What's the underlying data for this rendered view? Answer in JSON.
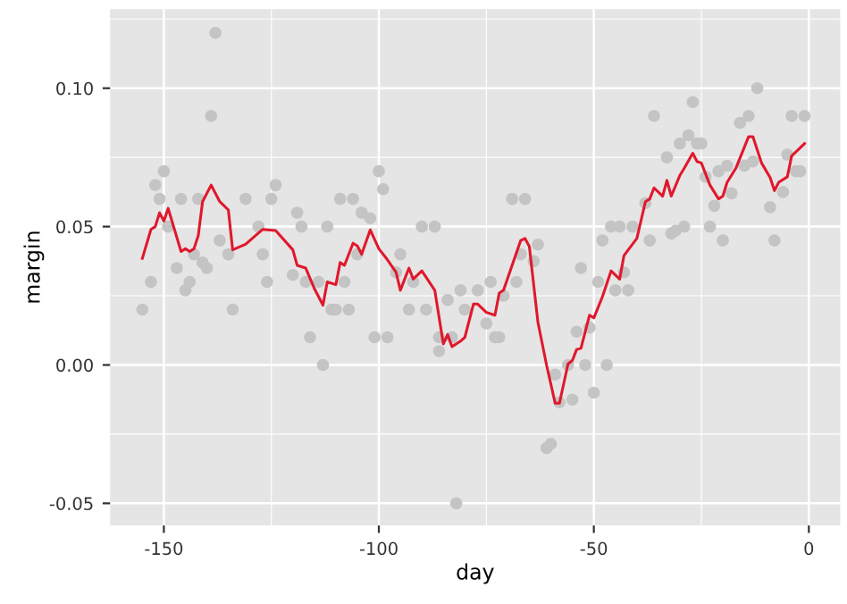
{
  "chart_data": {
    "type": "scatter",
    "xlabel": "day",
    "ylabel": "margin",
    "xlim": [
      -162.5,
      7.3
    ],
    "ylim": [
      -0.058,
      0.1286
    ],
    "xticks": [
      -150,
      -100,
      -50,
      0
    ],
    "yticks": [
      {
        "value": -0.05,
        "label": "-0.05"
      },
      {
        "value": 0.0,
        "label": "0.00"
      },
      {
        "value": 0.05,
        "label": "0.05"
      },
      {
        "value": 0.1,
        "label": "0.10"
      }
    ],
    "grid": true,
    "legend": false,
    "series": [
      {
        "marker": "circle",
        "color": "#c4c4c4",
        "x": [
          -155,
          -153,
          -152,
          -151,
          -150,
          -149,
          -147,
          -146,
          -145,
          -144,
          -143,
          -142,
          -141,
          -140,
          -139,
          -138,
          -137,
          -135,
          -134,
          -131,
          -128,
          -127,
          -126,
          -125,
          -124,
          -120,
          -119,
          -118,
          -117,
          -116,
          -114,
          -113,
          -112,
          -111,
          -110,
          -109,
          -108,
          -107,
          -106,
          -105,
          -104,
          -102,
          -101,
          -100,
          -99,
          -98,
          -96,
          -95,
          -93,
          -92,
          -90,
          -89,
          -87,
          -86,
          -86,
          -84,
          -83,
          -82,
          -81,
          -80,
          -77,
          -75,
          -74,
          -73,
          -72,
          -71,
          -69,
          -68,
          -67,
          -66,
          -64,
          -63,
          -61,
          -60,
          -59,
          -58,
          -56,
          -55,
          -54,
          -53,
          -52,
          -51,
          -50,
          -49,
          -48,
          -47,
          -46,
          -45,
          -44,
          -43,
          -42,
          -41,
          -38,
          -37,
          -36,
          -33,
          -32,
          -31,
          -30,
          -29,
          -28,
          -27,
          -26,
          -25,
          -24,
          -23,
          -22,
          -21,
          -20,
          -19,
          -18,
          -16,
          -15,
          -14,
          -13,
          -12,
          -9,
          -8,
          -6,
          -5,
          -4,
          -3,
          -2,
          -1
        ],
        "values": [
          0.02,
          0.03,
          0.065,
          0.06,
          0.07,
          0.05,
          0.035,
          0.06,
          0.027,
          0.03,
          0.04,
          0.06,
          0.037,
          0.035,
          0.09,
          0.12,
          0.045,
          0.04,
          0.02,
          0.06,
          0.05,
          0.04,
          0.03,
          0.06,
          0.065,
          0.0325,
          0.055,
          0.05,
          0.03,
          0.01,
          0.03,
          0.0,
          0.05,
          0.02,
          0.02,
          0.06,
          0.03,
          0.02,
          0.06,
          0.04,
          0.055,
          0.053,
          0.01,
          0.07,
          0.0635,
          0.01,
          0.0335,
          0.04,
          0.02,
          0.03,
          0.05,
          0.02,
          0.05,
          0.005,
          0.01,
          0.0235,
          0.01,
          -0.05,
          0.027,
          0.02,
          0.027,
          0.015,
          0.03,
          0.01,
          0.01,
          0.025,
          0.06,
          0.03,
          0.04,
          0.06,
          0.0375,
          0.0435,
          -0.03,
          -0.0285,
          -0.0035,
          -0.0135,
          0.0,
          -0.0125,
          0.012,
          0.035,
          0.0,
          0.0135,
          -0.01,
          0.03,
          0.045,
          0.0,
          0.05,
          0.027,
          0.05,
          0.0335,
          0.027,
          0.05,
          0.0585,
          0.045,
          0.09,
          0.075,
          0.0475,
          0.0485,
          0.08,
          0.05,
          0.083,
          0.095,
          0.08,
          0.08,
          0.068,
          0.05,
          0.0575,
          0.07,
          0.045,
          0.072,
          0.062,
          0.0875,
          0.072,
          0.09,
          0.0735,
          0.1,
          0.057,
          0.045,
          0.0625,
          0.076,
          0.09,
          0.07,
          0.07,
          0.09
        ]
      },
      {
        "type": "line",
        "marker": "none",
        "color": "#e0182c",
        "x": [
          -155,
          -153,
          -152,
          -151,
          -150,
          -149,
          -146,
          -145,
          -144,
          -143,
          -142,
          -141,
          -139,
          -137,
          -135,
          -134,
          -131,
          -127,
          -124,
          -120,
          -119,
          -117,
          -115,
          -113,
          -112,
          -110,
          -109,
          -108,
          -106,
          -105,
          -104,
          -102,
          -100,
          -98,
          -96,
          -95,
          -93,
          -92,
          -90,
          -87,
          -85,
          -84,
          -83,
          -81,
          -80,
          -78,
          -77,
          -75,
          -73,
          -72,
          -71,
          -67,
          -66,
          -65,
          -63,
          -61,
          -59,
          -58,
          -56,
          -55,
          -54,
          -53,
          -51,
          -50,
          -48,
          -46,
          -44,
          -43,
          -42,
          -40,
          -38,
          -37,
          -36,
          -34,
          -33,
          -32,
          -30,
          -29,
          -27,
          -26,
          -25,
          -23,
          -21,
          -20,
          -19,
          -17,
          -14,
          -13,
          -11,
          -9,
          -8,
          -7,
          -5,
          -4,
          -1
        ],
        "values": [
          0.0385,
          0.049,
          0.05,
          0.055,
          0.052,
          0.0566,
          0.041,
          0.042,
          0.041,
          0.042,
          0.0467,
          0.059,
          0.065,
          0.059,
          0.056,
          0.0416,
          0.0436,
          0.049,
          0.0486,
          0.0416,
          0.036,
          0.035,
          0.0276,
          0.0216,
          0.03,
          0.029,
          0.037,
          0.036,
          0.044,
          0.043,
          0.04,
          0.0488,
          0.042,
          0.038,
          0.0335,
          0.027,
          0.035,
          0.031,
          0.034,
          0.027,
          0.0076,
          0.011,
          0.0066,
          0.0086,
          0.01,
          0.022,
          0.022,
          0.019,
          0.018,
          0.026,
          0.027,
          0.045,
          0.0457,
          0.0428,
          0.0154,
          0.0,
          -0.0138,
          -0.0138,
          0.0004,
          0.0016,
          0.0056,
          0.006,
          0.018,
          0.017,
          0.0247,
          0.034,
          0.031,
          0.0395,
          0.0416,
          0.0457,
          0.059,
          0.06,
          0.064,
          0.061,
          0.0667,
          0.061,
          0.0685,
          0.071,
          0.0765,
          0.0735,
          0.073,
          0.065,
          0.06,
          0.061,
          0.066,
          0.071,
          0.0825,
          0.0825,
          0.073,
          0.0677,
          0.063,
          0.066,
          0.068,
          0.0755,
          0.08
        ]
      }
    ]
  }
}
